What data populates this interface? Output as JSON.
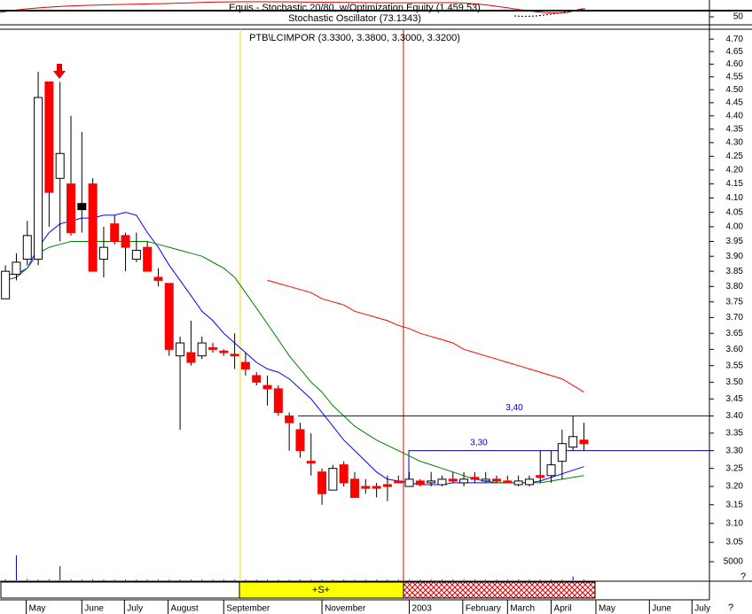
{
  "chart_data": {
    "type": "candlestick",
    "stochastic_title": "Equis - Stochastic 20/80, w/Optimization Equity (1,459.53)",
    "oscillator_title": "Stochastic Oscillator (73.1343)",
    "stochastic_yticks": [
      50
    ],
    "title": "PTB\\LCIMPOR (3.3300, 3.3800, 3.3000, 3.3200)",
    "log_scale": true,
    "ylim": [
      2.952,
      4.74
    ],
    "yticks": [
      {
        "value": 3.05,
        "label": "3.05"
      },
      {
        "value": 3.1,
        "label": "3.10"
      },
      {
        "value": 3.15,
        "label": "3.15"
      },
      {
        "value": 3.2,
        "label": "3.20"
      },
      {
        "value": 3.25,
        "label": "3.25"
      },
      {
        "value": 3.3,
        "label": "3.30"
      },
      {
        "value": 3.35,
        "label": "3.35"
      },
      {
        "value": 3.4,
        "label": "3.40"
      },
      {
        "value": 3.45,
        "label": "3.45"
      },
      {
        "value": 3.5,
        "label": "3.50"
      },
      {
        "value": 3.55,
        "label": "3.55"
      },
      {
        "value": 3.6,
        "label": "3.60"
      },
      {
        "value": 3.65,
        "label": "3.65"
      },
      {
        "value": 3.7,
        "label": "3.70"
      },
      {
        "value": 3.75,
        "label": "3.75"
      },
      {
        "value": 3.8,
        "label": "3.80"
      },
      {
        "value": 3.85,
        "label": "3.85"
      },
      {
        "value": 3.9,
        "label": "3.90"
      },
      {
        "value": 3.95,
        "label": "3.95"
      },
      {
        "value": 4.0,
        "label": "4.00"
      },
      {
        "value": 4.05,
        "label": "4.05"
      },
      {
        "value": 4.1,
        "label": "4.10"
      },
      {
        "value": 4.15,
        "label": "4.15"
      },
      {
        "value": 4.2,
        "label": "4.20"
      },
      {
        "value": 4.25,
        "label": "4.25"
      },
      {
        "value": 4.3,
        "label": "4.30"
      },
      {
        "value": 4.35,
        "label": "4.35"
      },
      {
        "value": 4.4,
        "label": "4.40"
      },
      {
        "value": 4.45,
        "label": "4.45"
      },
      {
        "value": 4.5,
        "label": "4.50"
      },
      {
        "value": 4.55,
        "label": "4.55"
      },
      {
        "value": 4.6,
        "label": "4.60"
      },
      {
        "value": 4.65,
        "label": "4.65"
      },
      {
        "value": 4.7,
        "label": "4.70"
      }
    ],
    "xlim": [
      -0.5,
      64.5
    ],
    "xticks": [
      {
        "value": 1.9,
        "label": "May"
      },
      {
        "value": 7,
        "label": "June"
      },
      {
        "value": 10.9,
        "label": "July"
      },
      {
        "value": 14.9,
        "label": "August"
      },
      {
        "value": 20,
        "label": "September"
      },
      {
        "value": 29,
        "label": "November"
      },
      {
        "value": 37,
        "label": "2003"
      },
      {
        "value": 41.9,
        "label": "February"
      },
      {
        "value": 46,
        "label": "March"
      },
      {
        "value": 50,
        "label": "April"
      },
      {
        "value": 54.1,
        "label": "May"
      },
      {
        "value": 59,
        "label": "June"
      },
      {
        "value": 62.9,
        "label": "July"
      }
    ],
    "open": [
      3.76,
      3.84,
      3.89,
      3.89,
      4.53,
      4.17,
      4.15,
      4.07,
      4.15,
      3.89,
      4.01,
      3.97,
      3.89,
      3.93,
      3.83,
      3.81,
      3.58,
      3.59,
      3.58,
      3.605,
      3.595,
      3.585,
      3.56,
      3.52,
      3.49,
      3.48,
      3.4,
      3.36,
      3.27,
      3.24,
      3.19,
      3.26,
      3.22,
      3.2,
      3.2,
      3.205,
      3.215,
      3.2,
      3.215,
      3.21,
      3.205,
      3.22,
      3.21,
      3.225,
      3.215,
      3.22,
      3.215,
      3.205,
      3.205,
      3.23,
      3.23,
      3.27,
      3.31,
      3.33
    ],
    "high": [
      3.87,
      3.91,
      4.02,
      4.57,
      4.53,
      4.53,
      4.4,
      4.34,
      4.17,
      4.0,
      4.04,
      3.98,
      3.98,
      3.95,
      3.86,
      3.81,
      3.64,
      3.69,
      3.64,
      3.62,
      3.6,
      3.65,
      3.59,
      3.53,
      3.52,
      3.49,
      3.41,
      3.38,
      3.35,
      3.25,
      3.26,
      3.27,
      3.24,
      3.22,
      3.21,
      3.23,
      3.23,
      3.24,
      3.22,
      3.24,
      3.23,
      3.24,
      3.24,
      3.24,
      3.24,
      3.23,
      3.23,
      3.23,
      3.23,
      3.3,
      3.3,
      3.36,
      3.4,
      3.38
    ],
    "low": [
      3.76,
      3.82,
      3.87,
      3.87,
      4.0,
      3.95,
      3.97,
      3.98,
      3.85,
      3.83,
      3.94,
      3.85,
      3.88,
      3.85,
      3.8,
      3.58,
      3.36,
      3.55,
      3.57,
      3.59,
      3.58,
      3.54,
      3.52,
      3.49,
      3.43,
      3.4,
      3.3,
      3.28,
      3.23,
      3.15,
      3.19,
      3.2,
      3.17,
      3.18,
      3.17,
      3.16,
      3.21,
      3.2,
      3.2,
      3.2,
      3.2,
      3.21,
      3.2,
      3.21,
      3.21,
      3.21,
      3.21,
      3.2,
      3.2,
      3.21,
      3.21,
      3.22,
      3.3,
      3.3
    ],
    "close": [
      3.85,
      3.88,
      3.97,
      4.47,
      4.12,
      4.26,
      3.98,
      4.07,
      3.85,
      3.93,
      3.95,
      3.93,
      3.92,
      3.85,
      3.82,
      3.6,
      3.62,
      3.56,
      3.62,
      3.6,
      3.59,
      3.58,
      3.54,
      3.5,
      3.48,
      3.41,
      3.38,
      3.3,
      3.265,
      3.18,
      3.25,
      3.21,
      3.17,
      3.195,
      3.195,
      3.2,
      3.21,
      3.22,
      3.205,
      3.215,
      3.22,
      3.215,
      3.22,
      3.22,
      3.22,
      3.215,
      3.21,
      3.215,
      3.22,
      3.225,
      3.26,
      3.32,
      3.34,
      3.32
    ],
    "colors": {
      "up": "#ffffff",
      "down": "#ff0000",
      "flat": "#000000"
    },
    "series": [
      {
        "color": "#0000ff",
        "values": [
          3.84,
          3.84,
          3.86,
          3.93,
          3.98,
          4.01,
          4.02,
          4.03,
          4.03,
          4.04,
          4.04,
          4.05,
          4.04,
          3.98,
          3.93,
          3.87,
          3.82,
          3.77,
          3.72,
          3.69,
          3.65,
          3.62,
          3.59,
          3.56,
          3.54,
          3.53,
          3.51,
          3.48,
          3.45,
          3.41,
          3.37,
          3.33,
          3.3,
          3.27,
          3.24,
          3.22,
          3.215,
          3.21,
          3.205,
          3.205,
          3.205,
          3.21,
          3.21,
          3.21,
          3.21,
          3.21,
          3.21,
          3.21,
          3.21,
          3.215,
          3.225,
          3.235,
          3.245,
          3.255
        ]
      },
      {
        "color": "#008000",
        "values": [
          3.82,
          3.83,
          3.86,
          3.91,
          3.93,
          3.94,
          3.95,
          3.95,
          3.95,
          3.95,
          3.95,
          3.95,
          3.95,
          3.95,
          3.94,
          3.93,
          3.92,
          3.91,
          3.9,
          3.88,
          3.86,
          3.83,
          3.78,
          3.73,
          3.68,
          3.63,
          3.58,
          3.54,
          3.5,
          3.47,
          3.43,
          3.4,
          3.37,
          3.35,
          3.33,
          3.315,
          3.3,
          3.285,
          3.27,
          3.26,
          3.25,
          3.24,
          3.23,
          3.22,
          3.215,
          3.21,
          3.21,
          3.21,
          3.21,
          3.21,
          3.215,
          3.22,
          3.225,
          3.23
        ]
      },
      {
        "color": "#ff0000",
        "values": [
          null,
          null,
          null,
          null,
          null,
          null,
          null,
          null,
          null,
          null,
          null,
          null,
          null,
          null,
          null,
          null,
          null,
          null,
          null,
          null,
          null,
          null,
          null,
          null,
          3.82,
          3.81,
          3.8,
          3.79,
          3.78,
          3.76,
          3.75,
          3.74,
          3.72,
          3.71,
          3.7,
          3.69,
          3.675,
          3.665,
          3.65,
          3.64,
          3.63,
          3.62,
          3.6,
          3.59,
          3.58,
          3.57,
          3.56,
          3.55,
          3.54,
          3.53,
          3.52,
          3.51,
          3.49,
          3.47
        ]
      }
    ],
    "levels": [
      {
        "value": 3.4,
        "label": "3,40"
      },
      {
        "value": 3.3,
        "label": "3,30"
      }
    ],
    "volume": [
      300,
      6700,
      300,
      200,
      300,
      3800,
      300,
      200,
      300,
      200,
      200,
      200,
      200,
      200,
      200,
      200,
      200,
      200,
      200,
      200,
      200,
      200,
      200,
      200,
      200,
      200,
      200,
      200,
      200,
      200,
      200,
      200,
      200,
      200,
      200,
      200,
      200,
      200,
      200,
      200,
      200,
      200,
      200,
      200,
      200,
      200,
      200,
      200,
      200,
      200,
      200,
      200,
      1000,
      200
    ],
    "volume_ylim": [
      0,
      6900
    ],
    "volume_yticks": [
      5000
    ],
    "signal_label": "+S+",
    "help_marks": [
      "?",
      "?"
    ]
  }
}
